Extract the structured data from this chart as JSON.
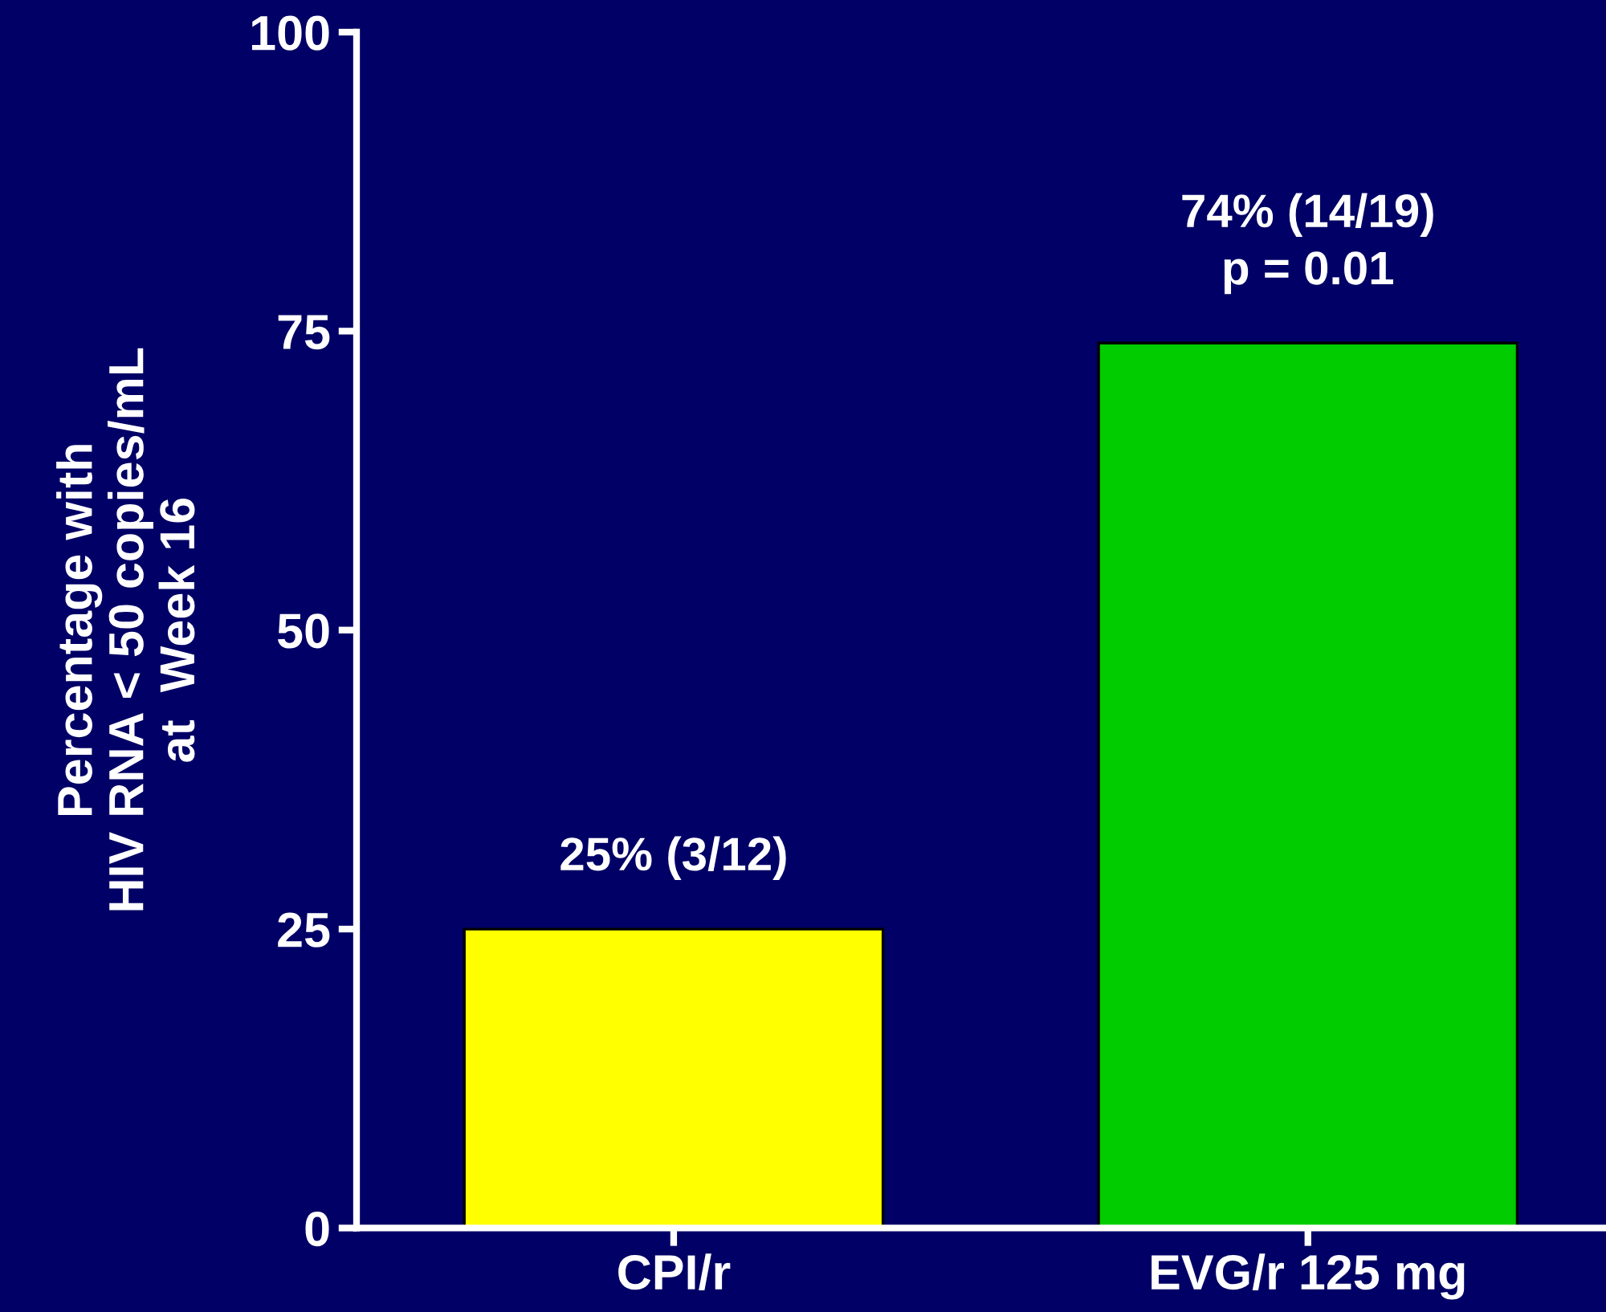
{
  "chart_data": {
    "type": "bar",
    "ylabel": "Percentage with\nHIV RNA < 50 copies/mL\nat  Week 16",
    "categories": [
      "CPI/r",
      "EVG/r 125 mg"
    ],
    "values": [
      25,
      74
    ],
    "colors": [
      "#ffff00",
      "#00cc00"
    ],
    "value_labels": [
      "25% (3/12)",
      "74% (14/19)\np = 0.01"
    ],
    "ylim": [
      0,
      100
    ],
    "yticks": [
      0,
      25,
      50,
      75,
      100
    ],
    "grid": false,
    "legend": false
  }
}
